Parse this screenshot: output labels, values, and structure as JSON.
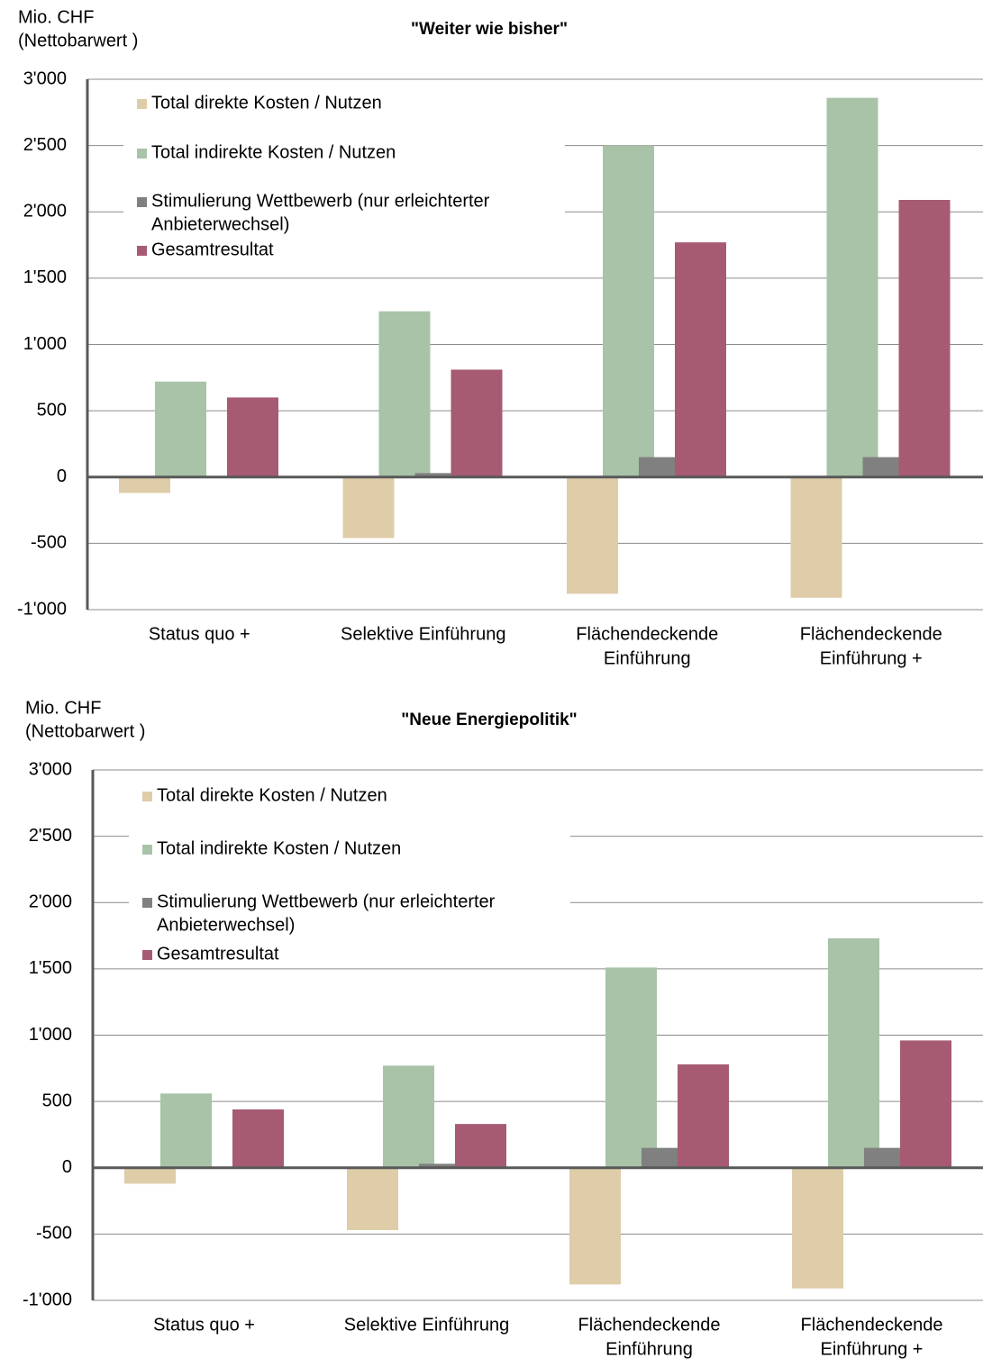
{
  "chart_data": [
    {
      "type": "bar",
      "title": "\"Weiter wie bisher\"",
      "y_label": [
        "Mio. CHF",
        "(Nettobarwert )"
      ],
      "categories": [
        [
          "Status quo +"
        ],
        [
          "Selektive Einführung"
        ],
        [
          "Flächendeckende",
          "Einführung"
        ],
        [
          "Flächendeckende",
          "Einführung +"
        ]
      ],
      "series": [
        {
          "name": [
            "Total direkte Kosten / Nutzen"
          ],
          "color": "#dfcca9",
          "values": [
            -120,
            -460,
            -880,
            -910
          ]
        },
        {
          "name": [
            "Total indirekte Kosten / Nutzen"
          ],
          "color": "#a8c3a8",
          "values": [
            720,
            1250,
            2500,
            2860
          ]
        },
        {
          "name": [
            "Stimulierung Wettbewerb (nur erleichterter",
            "Anbieterwechsel)"
          ],
          "color": "#808080",
          "values": [
            0,
            30,
            150,
            150
          ]
        },
        {
          "name": [
            "Gesamtresultat"
          ],
          "color": "#a65b72",
          "values": [
            600,
            810,
            1770,
            2090
          ]
        }
      ],
      "ylim": [
        -1000,
        3000
      ],
      "yticks": [
        {
          "value": -1000,
          "label": "-1'000"
        },
        -500,
        0,
        500,
        {
          "value": 1000,
          "label": "1'000"
        },
        {
          "value": 1500,
          "label": "1'500"
        },
        {
          "value": 2000,
          "label": "2'000"
        },
        {
          "value": 2500,
          "label": "2'500"
        },
        {
          "value": 3000,
          "label": "3'000"
        }
      ],
      "grid": true,
      "legend": "upper left"
    },
    {
      "type": "bar",
      "title": "\"Neue Energiepolitik\"",
      "y_label": [
        "Mio. CHF",
        "(Nettobarwert )"
      ],
      "categories": [
        [
          "Status quo +"
        ],
        [
          "Selektive Einführung"
        ],
        [
          "Flächendeckende",
          "Einführung"
        ],
        [
          "Flächendeckende",
          "Einführung +"
        ]
      ],
      "series": [
        {
          "name": [
            "Total direkte Kosten / Nutzen"
          ],
          "color": "#dfcca9",
          "values": [
            -120,
            -470,
            -880,
            -910
          ]
        },
        {
          "name": [
            "Total indirekte Kosten / Nutzen"
          ],
          "color": "#a8c3a8",
          "values": [
            560,
            770,
            1510,
            1730
          ]
        },
        {
          "name": [
            "Stimulierung Wettbewerb (nur erleichterter",
            "Anbieterwechsel)"
          ],
          "color": "#808080",
          "values": [
            0,
            30,
            150,
            150
          ]
        },
        {
          "name": [
            "Gesamtresultat"
          ],
          "color": "#a65b72",
          "values": [
            440,
            330,
            780,
            960
          ]
        }
      ],
      "ylim": [
        -1000,
        3000
      ],
      "yticks": [
        {
          "value": -1000,
          "label": "-1'000"
        },
        -500,
        0,
        500,
        {
          "value": 1000,
          "label": "1'000"
        },
        {
          "value": 1500,
          "label": "1'500"
        },
        {
          "value": 2000,
          "label": "2'000"
        },
        {
          "value": 2500,
          "label": "2'500"
        },
        {
          "value": 3000,
          "label": "3'000"
        }
      ],
      "grid": true,
      "legend": "upper left"
    }
  ]
}
